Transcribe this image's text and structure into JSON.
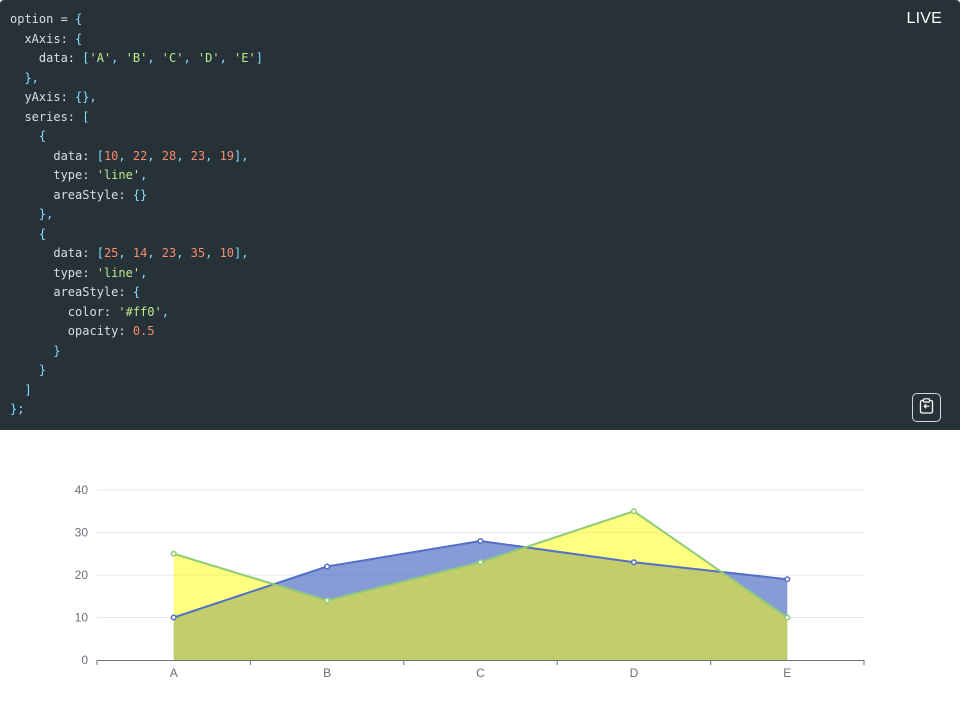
{
  "header": {
    "live_label": "LIVE"
  },
  "code_lines": [
    [
      {
        "t": "option = ",
        "c": "ident"
      },
      {
        "t": "{",
        "c": "punc"
      }
    ],
    [
      {
        "t": "  xAxis: ",
        "c": "ident"
      },
      {
        "t": "{",
        "c": "punc"
      }
    ],
    [
      {
        "t": "    data: ",
        "c": "ident"
      },
      {
        "t": "[",
        "c": "punc"
      },
      {
        "t": "'A'",
        "c": "str"
      },
      {
        "t": ", ",
        "c": "punc"
      },
      {
        "t": "'B'",
        "c": "str"
      },
      {
        "t": ", ",
        "c": "punc"
      },
      {
        "t": "'C'",
        "c": "str"
      },
      {
        "t": ", ",
        "c": "punc"
      },
      {
        "t": "'D'",
        "c": "str"
      },
      {
        "t": ", ",
        "c": "punc"
      },
      {
        "t": "'E'",
        "c": "str"
      },
      {
        "t": "]",
        "c": "punc"
      }
    ],
    [
      {
        "t": "  },",
        "c": "punc"
      }
    ],
    [
      {
        "t": "  yAxis: ",
        "c": "ident"
      },
      {
        "t": "{},",
        "c": "punc"
      }
    ],
    [
      {
        "t": "  series: ",
        "c": "ident"
      },
      {
        "t": "[",
        "c": "punc"
      }
    ],
    [
      {
        "t": "    {",
        "c": "punc"
      }
    ],
    [
      {
        "t": "      data: ",
        "c": "ident"
      },
      {
        "t": "[",
        "c": "punc"
      },
      {
        "t": "10",
        "c": "num"
      },
      {
        "t": ", ",
        "c": "punc"
      },
      {
        "t": "22",
        "c": "num"
      },
      {
        "t": ", ",
        "c": "punc"
      },
      {
        "t": "28",
        "c": "num"
      },
      {
        "t": ", ",
        "c": "punc"
      },
      {
        "t": "23",
        "c": "num"
      },
      {
        "t": ", ",
        "c": "punc"
      },
      {
        "t": "19",
        "c": "num"
      },
      {
        "t": "],",
        "c": "punc"
      }
    ],
    [
      {
        "t": "      type: ",
        "c": "ident"
      },
      {
        "t": "'line'",
        "c": "str"
      },
      {
        "t": ",",
        "c": "punc"
      }
    ],
    [
      {
        "t": "      areaStyle: ",
        "c": "ident"
      },
      {
        "t": "{}",
        "c": "punc"
      }
    ],
    [
      {
        "t": "    },",
        "c": "punc"
      }
    ],
    [
      {
        "t": "    {",
        "c": "punc"
      }
    ],
    [
      {
        "t": "      data: ",
        "c": "ident"
      },
      {
        "t": "[",
        "c": "punc"
      },
      {
        "t": "25",
        "c": "num"
      },
      {
        "t": ", ",
        "c": "punc"
      },
      {
        "t": "14",
        "c": "num"
      },
      {
        "t": ", ",
        "c": "punc"
      },
      {
        "t": "23",
        "c": "num"
      },
      {
        "t": ", ",
        "c": "punc"
      },
      {
        "t": "35",
        "c": "num"
      },
      {
        "t": ", ",
        "c": "punc"
      },
      {
        "t": "10",
        "c": "num"
      },
      {
        "t": "],",
        "c": "punc"
      }
    ],
    [
      {
        "t": "      type: ",
        "c": "ident"
      },
      {
        "t": "'line'",
        "c": "str"
      },
      {
        "t": ",",
        "c": "punc"
      }
    ],
    [
      {
        "t": "      areaStyle: ",
        "c": "ident"
      },
      {
        "t": "{",
        "c": "punc"
      }
    ],
    [
      {
        "t": "        color: ",
        "c": "ident"
      },
      {
        "t": "'#ff0'",
        "c": "str"
      },
      {
        "t": ",",
        "c": "punc"
      }
    ],
    [
      {
        "t": "        opacity: ",
        "c": "ident"
      },
      {
        "t": "0.5",
        "c": "num"
      }
    ],
    [
      {
        "t": "      }",
        "c": "punc"
      }
    ],
    [
      {
        "t": "    }",
        "c": "punc"
      }
    ],
    [
      {
        "t": "  ]",
        "c": "punc"
      }
    ],
    [
      {
        "t": "};",
        "c": "punc"
      }
    ]
  ],
  "toolbar": {
    "copy_icon": "clipboard-icon"
  },
  "chart_data": {
    "type": "area",
    "categories": [
      "A",
      "B",
      "C",
      "D",
      "E"
    ],
    "ylim": [
      0,
      40
    ],
    "yticks": [
      0,
      10,
      20,
      30,
      40
    ],
    "grid": true,
    "series": [
      {
        "values": [
          10,
          22,
          28,
          23,
          19
        ],
        "line_color": "#5470c6",
        "area_color": "#5470c6",
        "area_opacity": 0.7
      },
      {
        "values": [
          25,
          14,
          23,
          35,
          10
        ],
        "line_color": "#91cc75",
        "area_color": "#ffff00",
        "area_opacity": 0.5
      }
    ]
  }
}
